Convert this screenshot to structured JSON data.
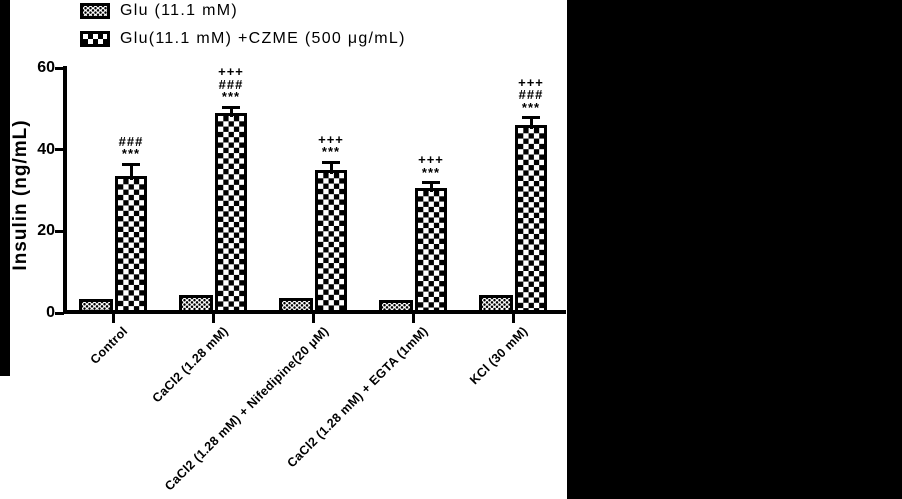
{
  "figure": {
    "background": "#ffffff",
    "mask_color": "#000000",
    "ink_color": "#000000"
  },
  "legend": {
    "items": [
      {
        "label": "Glu (11.1 mM)",
        "pattern": "stipple"
      },
      {
        "label": "Glu(11.1 mM) +CZME (500 μg/mL)",
        "pattern": "checker"
      }
    ]
  },
  "chart_data": {
    "type": "bar",
    "title": "",
    "xlabel": "",
    "ylabel": "Insulin (ng/mL)",
    "ylim": [
      0,
      60
    ],
    "yticks": [
      0,
      20,
      40,
      60
    ],
    "grid": false,
    "legend_position": "top-left",
    "xtick_rotation_deg": 45,
    "categories": [
      "Control",
      "CaCl2 (1.28 mM)",
      "CaCl2 (1.28 mM) + Nifedipine(20 μM)",
      "CaCl2 (1.28 mM) + EGTA (1mM)",
      "KCl (30 mM)"
    ],
    "series": [
      {
        "name": "Glu (11.1 mM)",
        "pattern": "stipple",
        "values": [
          3.4,
          4.5,
          3.7,
          3.2,
          4.4
        ]
      },
      {
        "name": "Glu(11.1 mM) +CZME (500 μg/mL)",
        "pattern": "checker",
        "values": [
          33.5,
          49,
          35,
          30.5,
          46
        ],
        "errors": [
          3,
          1.5,
          2,
          1.5,
          2
        ],
        "annotations": [
          [
            "###",
            "***"
          ],
          [
            "+++",
            "###",
            "***"
          ],
          [
            "+++",
            "***"
          ],
          [
            "+++",
            "***"
          ],
          [
            "+++",
            "###",
            "***"
          ]
        ]
      }
    ]
  }
}
